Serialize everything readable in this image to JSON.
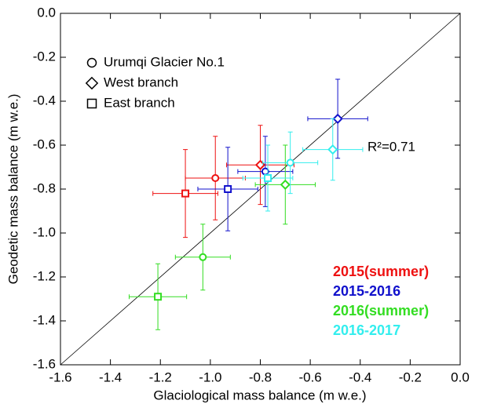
{
  "chart_data": {
    "type": "scatter",
    "xlabel": "Glaciological mass balance (m w.e.)",
    "ylabel": "Geodetic mass balance (m w.e.)",
    "xlim": [
      -1.6,
      0
    ],
    "ylim": [
      -1.6,
      0
    ],
    "xticks": [
      -1.6,
      -1.4,
      -1.2,
      {
        "value": -1,
        "label": "-1.0"
      },
      -0.8,
      -0.6,
      -0.4,
      -0.2,
      {
        "value": 0,
        "label": "0.0"
      }
    ],
    "yticks": [
      -1.6,
      -1.4,
      -1.2,
      {
        "value": -1,
        "label": "-1.0"
      },
      -0.8,
      -0.6,
      -0.4,
      -0.2,
      {
        "value": 0,
        "label": "0.0"
      }
    ],
    "markers": [
      "circle",
      "diamond",
      "square"
    ],
    "shape_legend": [
      "Urumqi Glacier No.1",
      "West branch",
      "East branch"
    ],
    "annotation": "R²=0.71",
    "series": [
      {
        "name": "2015(summer)",
        "color": "#ee1111",
        "x": [
          -0.98,
          -0.8,
          -1.1
        ],
        "values": [
          -0.75,
          -0.69,
          -0.82
        ],
        "xerr": [
          0.12,
          0.135,
          0.13
        ],
        "yerr": [
          0.19,
          0.18,
          0.2
        ]
      },
      {
        "name": "2015-2016",
        "color": "#1111cc",
        "x": [
          -0.78,
          -0.49,
          -0.93
        ],
        "values": [
          -0.72,
          -0.48,
          -0.8
        ],
        "xerr": [
          0.11,
          0.12,
          0.12
        ],
        "yerr": [
          0.16,
          0.18,
          0.19
        ]
      },
      {
        "name": "2016(summer)",
        "color": "#33dd22",
        "x": [
          -1.03,
          -0.7,
          -1.21
        ],
        "values": [
          -1.11,
          -0.78,
          -1.29
        ],
        "xerr": [
          0.11,
          0.12,
          0.115
        ],
        "yerr": [
          0.15,
          0.18,
          0.15
        ]
      },
      {
        "name": "2016-2017",
        "color": "#33eeee",
        "x": [
          -0.68,
          -0.51,
          -0.77
        ],
        "values": [
          -0.68,
          -0.62,
          -0.75
        ],
        "xerr": [
          0.11,
          0.12,
          0.1
        ],
        "yerr": [
          0.14,
          0.14,
          0.15
        ]
      }
    ]
  }
}
